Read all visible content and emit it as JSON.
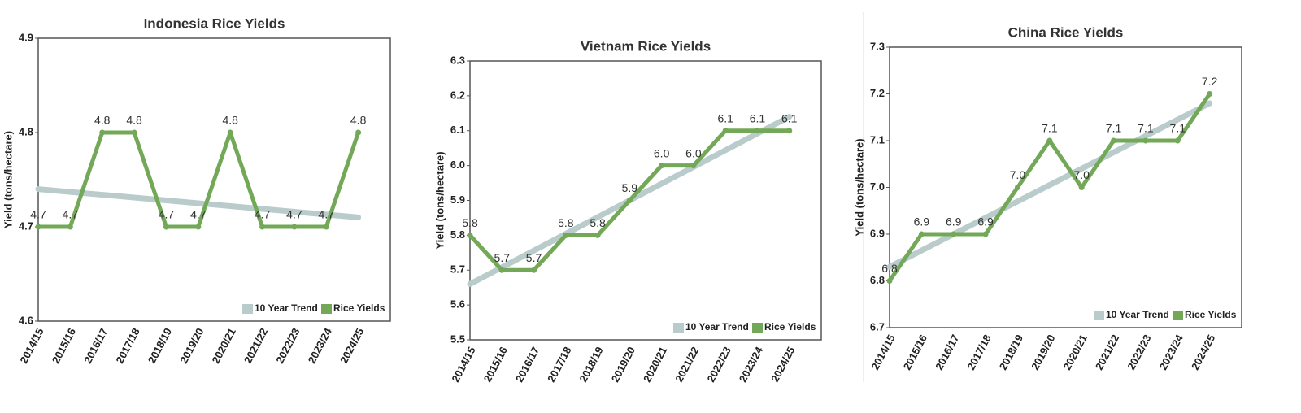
{
  "chart_data": [
    {
      "type": "line",
      "title": "Indonesia Rice Yields",
      "y_label": "Yield (tons/hectare)",
      "categories": [
        "2014/15",
        "2015/16",
        "2016/17",
        "2017/18",
        "2018/19",
        "2019/20",
        "2020/21",
        "2021/22",
        "2022/23",
        "2023/24",
        "2024/25"
      ],
      "series": [
        {
          "name": "10 Year Trend",
          "color": "#b9cccb",
          "values": [
            4.74,
            4.737,
            4.734,
            4.731,
            4.728,
            4.725,
            4.722,
            4.719,
            4.716,
            4.713,
            4.71
          ]
        },
        {
          "name": "Rice Yields",
          "color": "#72a857",
          "values": [
            4.7,
            4.7,
            4.8,
            4.8,
            4.7,
            4.7,
            4.8,
            4.7,
            4.7,
            4.7,
            4.8
          ]
        }
      ],
      "ylim": [
        4.6,
        4.9
      ],
      "yticks": [
        4.6,
        4.7,
        4.8,
        4.9
      ],
      "legend": "lower right"
    },
    {
      "type": "line",
      "title": "Vietnam Rice Yields",
      "y_label": "Yield (tons/hectare)",
      "categories": [
        "2014/15",
        "2015/16",
        "2016/17",
        "2017/18",
        "2018/19",
        "2019/20",
        "2020/21",
        "2021/22",
        "2022/23",
        "2023/24",
        "2024/25"
      ],
      "series": [
        {
          "name": "10 Year Trend",
          "color": "#b9cccb",
          "values": [
            5.66,
            5.708,
            5.756,
            5.804,
            5.852,
            5.9,
            5.948,
            5.996,
            6.044,
            6.092,
            6.14
          ]
        },
        {
          "name": "Rice Yields",
          "color": "#72a857",
          "values": [
            5.8,
            5.7,
            5.7,
            5.8,
            5.8,
            5.9,
            6,
            6,
            6.1,
            6.1,
            6.1
          ],
          "value_labels": [
            "5.8",
            "5.7",
            "5.7",
            "5.8",
            "5.8",
            "5.9",
            "6.0",
            "6.0",
            "6.1",
            "6.1",
            "6.1"
          ]
        }
      ],
      "ylim": [
        5.5,
        6.3
      ],
      "yticks": [
        5.5,
        5.6,
        5.7,
        5.8,
        5.9,
        {
          "value": 6,
          "label": "6.0"
        },
        6.1,
        6.2,
        6.3
      ],
      "legend": "lower right"
    },
    {
      "type": "line",
      "title": "China Rice Yields",
      "y_label": "Yield (tons/hectare)",
      "categories": [
        "2014/15",
        "2015/16",
        "2016/17",
        "2017/18",
        "2018/19",
        "2019/20",
        "2020/21",
        "2021/22",
        "2022/23",
        "2023/24",
        "2024/25"
      ],
      "series": [
        {
          "name": "10 Year Trend",
          "color": "#b9cccb",
          "values": [
            6.83,
            6.865,
            6.9,
            6.935,
            6.97,
            7.005,
            7.04,
            7.075,
            7.11,
            7.145,
            7.18
          ]
        },
        {
          "name": "Rice Yields",
          "color": "#72a857",
          "values": [
            6.8,
            6.9,
            6.9,
            6.9,
            7,
            7.1,
            7,
            7.1,
            7.1,
            7.1,
            7.2
          ],
          "value_labels": [
            "6.8",
            "6.9",
            "6.9",
            "6.9",
            "7.0",
            "7.1",
            "7.0",
            "7.1",
            "7.1",
            "7.1",
            "7.2"
          ]
        }
      ],
      "ylim": [
        6.7,
        7.3
      ],
      "yticks": [
        6.7,
        6.8,
        6.9,
        {
          "value": 7,
          "label": "7.0"
        },
        7.1,
        7.2,
        7.3
      ],
      "legend": "lower right"
    }
  ]
}
